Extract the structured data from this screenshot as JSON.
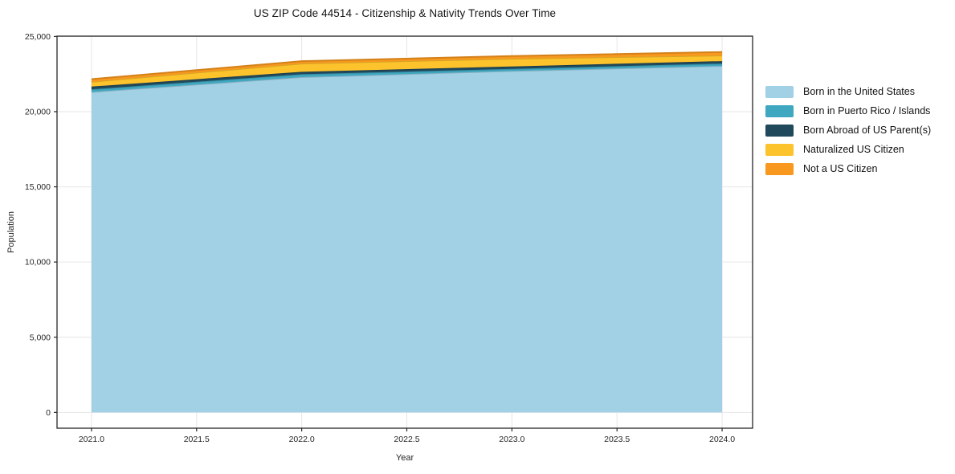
{
  "chart_data": {
    "type": "area",
    "stacked": true,
    "title": "US ZIP Code 44514 - Citizenship & Nativity Trends Over Time",
    "xlabel": "Year",
    "ylabel": "Population",
    "x": [
      2021,
      2022,
      2023,
      2024
    ],
    "series": [
      {
        "name": "Born in the United States",
        "color": "#A2D0E5",
        "values": [
          21310,
          22295,
          22705,
          23040
        ]
      },
      {
        "name": "Born in Puerto Rico / Islands",
        "color": "#3FA7C0",
        "values": [
          175,
          195,
          140,
          160
        ]
      },
      {
        "name": "Born Abroad of US Parent(s)",
        "color": "#21495C",
        "values": [
          180,
          160,
          160,
          160
        ]
      },
      {
        "name": "Naturalized US Citizen",
        "color": "#FCC32D",
        "values": [
          320,
          550,
          515,
          375
        ]
      },
      {
        "name": "Not a US Citizen",
        "color": "#F8981F",
        "values": [
          180,
          160,
          180,
          230
        ]
      }
    ],
    "xlim": [
      2020.836,
      2024.145
    ],
    "ylim": [
      -1050,
      25020
    ],
    "xticks": [
      2021.0,
      2021.5,
      2022.0,
      2022.5,
      2023.0,
      2023.5,
      2024.0
    ],
    "xtick_labels": [
      "2021.0",
      "2021.5",
      "2022.0",
      "2022.5",
      "2023.0",
      "2023.5",
      "2024.0"
    ],
    "yticks": [
      0,
      5000,
      10000,
      15000,
      20000,
      25000
    ],
    "ytick_labels": [
      "0",
      "5,000",
      "10,000",
      "15,000",
      "20,000",
      "25,000"
    ],
    "grid": true,
    "legend_position": "right-outside",
    "style": {
      "frame_color": "#262626",
      "tick_color": "#262626",
      "tick_label_color": "#262626",
      "grid_color": "#e6e6e6",
      "background": "#ffffff",
      "edge_line_shade": 0.85
    }
  }
}
